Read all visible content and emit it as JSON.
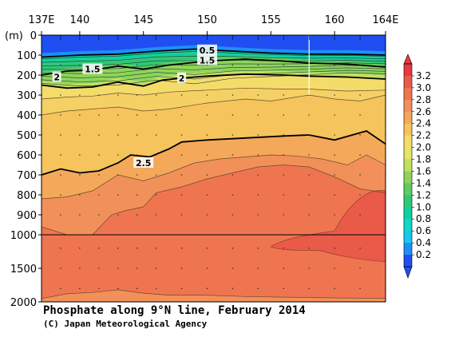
{
  "chart_data": {
    "type": "heatmap",
    "title": "Phosphate along 9°N line, February 2014",
    "credit": "(C) Japan Meteorological Agency",
    "x_ticks": [
      "137E",
      "140",
      "145",
      "150",
      "155",
      "160",
      "164E"
    ],
    "x_tick_values": [
      137,
      140,
      145,
      150,
      155,
      160,
      164
    ],
    "xlim": [
      137,
      164
    ],
    "y_unit": "(m)",
    "y_ticks_upper": [
      "0",
      "100",
      "200",
      "300",
      "400",
      "500",
      "600",
      "700",
      "800",
      "900",
      "1000"
    ],
    "y_ticks_upper_values": [
      0,
      100,
      200,
      300,
      400,
      500,
      600,
      700,
      800,
      900,
      1000
    ],
    "y_ticks_lower": [
      "1500",
      "2000"
    ],
    "y_ticks_lower_values": [
      1500,
      2000
    ],
    "ylim": [
      0,
      2000
    ],
    "y_break_depth": 1000,
    "colorbar": {
      "labels": [
        "0.2",
        "0.4",
        "0.6",
        "0.8",
        "1.0",
        "1.2",
        "1.4",
        "1.6",
        "1.8",
        "2.0",
        "2.2",
        "2.4",
        "2.6",
        "2.8",
        "3.0",
        "3.2"
      ],
      "colors": [
        "#1f4ff0",
        "#1e8ff8",
        "#18c8f0",
        "#10d8c8",
        "#10d0a0",
        "#30c878",
        "#60cc60",
        "#8fd45a",
        "#c2e060",
        "#e4e468",
        "#f4dc6a",
        "#f5c45c",
        "#f4a85a",
        "#f2905a",
        "#ef7550",
        "#ea5a48",
        "#e43a40"
      ]
    },
    "contour_labels": [
      {
        "text": "0.5",
        "lon": 150.0,
        "depth": 75
      },
      {
        "text": "1.5",
        "lon": 150.0,
        "depth": 125
      },
      {
        "text": "1.5",
        "lon": 141.0,
        "depth": 170
      },
      {
        "text": "2",
        "lon": 138.2,
        "depth": 210
      },
      {
        "text": "2",
        "lon": 148.0,
        "depth": 215
      },
      {
        "text": "2.5",
        "lon": 145.0,
        "depth": 640
      }
    ],
    "contours": {
      "c2_5": [
        [
          137,
          700
        ],
        [
          138.5,
          670
        ],
        [
          140,
          690
        ],
        [
          141.5,
          680
        ],
        [
          143,
          640
        ],
        [
          144,
          600
        ],
        [
          145.5,
          610
        ],
        [
          147,
          570
        ],
        [
          148,
          535
        ],
        [
          150,
          525
        ],
        [
          153,
          515
        ],
        [
          156,
          505
        ],
        [
          158,
          500
        ],
        [
          160,
          525
        ],
        [
          162.5,
          480
        ],
        [
          164,
          545
        ]
      ],
      "c2_0": [
        [
          137,
          250
        ],
        [
          139,
          265
        ],
        [
          141,
          260
        ],
        [
          143,
          235
        ],
        [
          145,
          255
        ],
        [
          146.5,
          225
        ],
        [
          148,
          215
        ],
        [
          150,
          205
        ],
        [
          153,
          195
        ],
        [
          156,
          200
        ],
        [
          158,
          205
        ],
        [
          161,
          210
        ],
        [
          164,
          220
        ]
      ],
      "c1_5": [
        [
          137,
          200
        ],
        [
          139,
          180
        ],
        [
          141,
          175
        ],
        [
          143,
          155
        ],
        [
          145,
          170
        ],
        [
          147,
          150
        ],
        [
          150,
          130
        ],
        [
          153,
          120
        ],
        [
          156,
          130
        ],
        [
          158,
          140
        ],
        [
          161,
          145
        ],
        [
          164,
          160
        ]
      ],
      "c0_5": [
        [
          137,
          110
        ],
        [
          140,
          100
        ],
        [
          143,
          95
        ],
        [
          146,
          80
        ],
        [
          149,
          70
        ],
        [
          152,
          80
        ],
        [
          155,
          90
        ],
        [
          158,
          95
        ],
        [
          161,
          95
        ],
        [
          164,
          100
        ]
      ],
      "c2_6": [
        [
          137,
          820
        ],
        [
          139,
          810
        ],
        [
          141,
          780
        ],
        [
          143,
          700
        ],
        [
          145,
          730
        ],
        [
          147,
          690
        ],
        [
          149,
          640
        ],
        [
          151,
          620
        ],
        [
          153,
          610
        ],
        [
          155,
          600
        ],
        [
          157,
          605
        ],
        [
          159,
          620
        ],
        [
          161,
          650
        ],
        [
          162.5,
          600
        ],
        [
          164,
          650
        ]
      ],
      "c2_4": [
        [
          137,
          400
        ],
        [
          139,
          380
        ],
        [
          141,
          370
        ],
        [
          143,
          360
        ],
        [
          145,
          380
        ],
        [
          147,
          370
        ],
        [
          150,
          340
        ],
        [
          153,
          320
        ],
        [
          155,
          330
        ],
        [
          157,
          310
        ],
        [
          158,
          300
        ],
        [
          160,
          320
        ],
        [
          162,
          330
        ],
        [
          164,
          300
        ]
      ],
      "c2_3": [
        [
          137,
          320
        ],
        [
          139,
          310
        ],
        [
          141,
          305
        ],
        [
          143,
          290
        ],
        [
          145,
          300
        ],
        [
          147,
          285
        ],
        [
          150,
          275
        ],
        [
          153,
          265
        ],
        [
          156,
          270
        ],
        [
          158,
          270
        ],
        [
          161,
          280
        ],
        [
          164,
          275
        ]
      ],
      "c2_7": [
        [
          137,
          960
        ],
        [
          139,
          1000
        ],
        [
          141,
          1000
        ],
        [
          142.5,
          900
        ],
        [
          143.5,
          880
        ],
        [
          145,
          860
        ],
        [
          146,
          790
        ],
        [
          148,
          760
        ],
        [
          150,
          720
        ],
        [
          152,
          690
        ],
        [
          154,
          660
        ],
        [
          156,
          650
        ],
        [
          158,
          660
        ],
        [
          160,
          710
        ],
        [
          162,
          770
        ],
        [
          164,
          790
        ]
      ],
      "c2_8_low": [
        [
          137,
          1950
        ],
        [
          139,
          1880
        ],
        [
          141,
          1860
        ],
        [
          143,
          1820
        ],
        [
          145,
          1870
        ],
        [
          147,
          1900
        ],
        [
          150,
          1900
        ],
        [
          153,
          1920
        ],
        [
          156,
          1930
        ],
        [
          160,
          1940
        ],
        [
          164,
          1950
        ]
      ]
    }
  }
}
